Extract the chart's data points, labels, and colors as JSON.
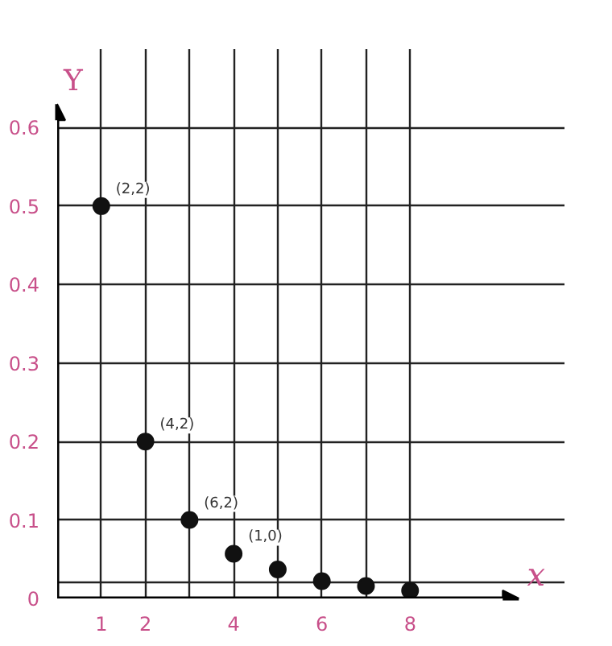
{
  "chart_data": {
    "type": "scatter",
    "xlabel": "x",
    "ylabel": "Y",
    "x": [
      1,
      2,
      3,
      4,
      5,
      6,
      7,
      8
    ],
    "series": [
      {
        "color": "#111111",
        "values": [
          0.5,
          0.2,
          0.1,
          0.057,
          0.037,
          0.022,
          0.016,
          0.01
        ]
      }
    ],
    "marker": "circle",
    "grid": true,
    "xlim": [
      0,
      11.5
    ],
    "ylim": [
      0,
      0.7
    ],
    "xticks": [
      1,
      2,
      {
        "value": 3,
        "label": null
      },
      4,
      {
        "value": 5,
        "label": null
      },
      6,
      {
        "value": 7,
        "label": null
      },
      8
    ],
    "yticks": [
      0,
      {
        "value": 0.02,
        "label": null
      },
      0.1,
      0.2,
      0.3,
      0.4,
      0.5,
      0.6
    ],
    "annotations": [
      {
        "text": "(2,2)",
        "x": 1,
        "y": 0.5
      },
      {
        "text": "(4,2)",
        "x": 2,
        "y": 0.2
      },
      {
        "text": "(6,2)",
        "x": 3,
        "y": 0.1
      },
      {
        "text": "(1,0)",
        "x": 4,
        "y": 0.057
      }
    ]
  }
}
